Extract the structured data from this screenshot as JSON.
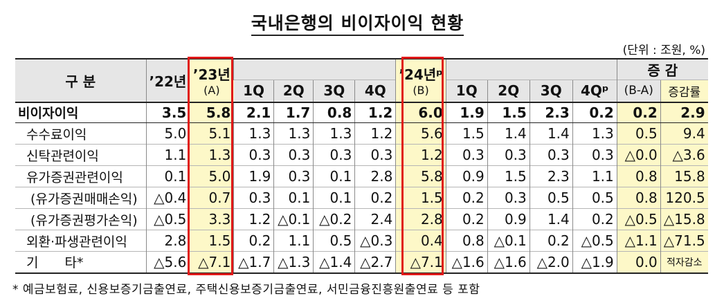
{
  "title": "국내은행의 비이자이익 현황",
  "unit": "(단위 : 조원, %)",
  "header": {
    "category": "구 분",
    "y22": "’22년",
    "y23": "’23년",
    "y23_sub": "(A)",
    "y24": "’24년ᵖ",
    "y24_sub": "(B)",
    "quarters_23": [
      "1Q",
      "2Q",
      "3Q",
      "4Q"
    ],
    "quarters_24": [
      "1Q",
      "2Q",
      "3Q",
      "4Qᵖ"
    ],
    "change": "증 감",
    "change_sub": "(B-A)",
    "rate": "증감률"
  },
  "rows": [
    {
      "label": "비이자이익",
      "values": [
        "3.5",
        "5.8",
        "2.1",
        "1.7",
        "0.8",
        "1.2",
        "6.0",
        "1.9",
        "1.5",
        "2.3",
        "0.2",
        "0.2",
        "2.9"
      ]
    },
    {
      "label": "수수료이익",
      "values": [
        "5.0",
        "5.1",
        "1.3",
        "1.3",
        "1.3",
        "1.2",
        "5.6",
        "1.5",
        "1.4",
        "1.4",
        "1.3",
        "0.5",
        "9.4"
      ]
    },
    {
      "label": "신탁관련이익",
      "values": [
        "1.1",
        "1.3",
        "0.3",
        "0.3",
        "0.3",
        "0.3",
        "1.2",
        "0.3",
        "0.3",
        "0.3",
        "0.3",
        "△0.0",
        "△3.6"
      ]
    },
    {
      "label": "유가증권관련이익",
      "values": [
        "0.1",
        "5.0",
        "1.9",
        "0.3",
        "0.1",
        "2.8",
        "5.8",
        "0.9",
        "1.5",
        "2.3",
        "1.1",
        "0.8",
        "15.8"
      ]
    },
    {
      "label": "(유가증권매매손익)",
      "values": [
        "△0.4",
        "0.7",
        "0.3",
        "0.1",
        "0.1",
        "0.2",
        "1.5",
        "0.2",
        "0.3",
        "0.5",
        "0.5",
        "0.8",
        "120.5"
      ]
    },
    {
      "label": "(유가증권평가손익)",
      "values": [
        "△0.5",
        "3.3",
        "1.2",
        "△0.1",
        "△0.2",
        "2.4",
        "2.8",
        "0.2",
        "0.9",
        "1.4",
        "0.2",
        "△0.5",
        "△15.8"
      ]
    },
    {
      "label": "외환·파생관련이익",
      "values": [
        "2.8",
        "1.5",
        "0.2",
        "1.1",
        "0.5",
        "△0.3",
        "0.4",
        "0.8",
        "△0.1",
        "0.2",
        "△0.5",
        "△1.1",
        "△71.5"
      ]
    },
    {
      "label": "기　　타*",
      "values": [
        "△5.6",
        "△7.1",
        "△1.7",
        "△1.3",
        "△1.4",
        "△2.7",
        "△7.1",
        "△1.6",
        "△1.6",
        "△2.0",
        "△1.9",
        "0.0",
        "적자감소"
      ]
    }
  ],
  "footnote": "* 예금보험료, 신용보증기금출연료, 주택신용보증기금출연료, 서민금융진흥원출연료 등 포함"
}
